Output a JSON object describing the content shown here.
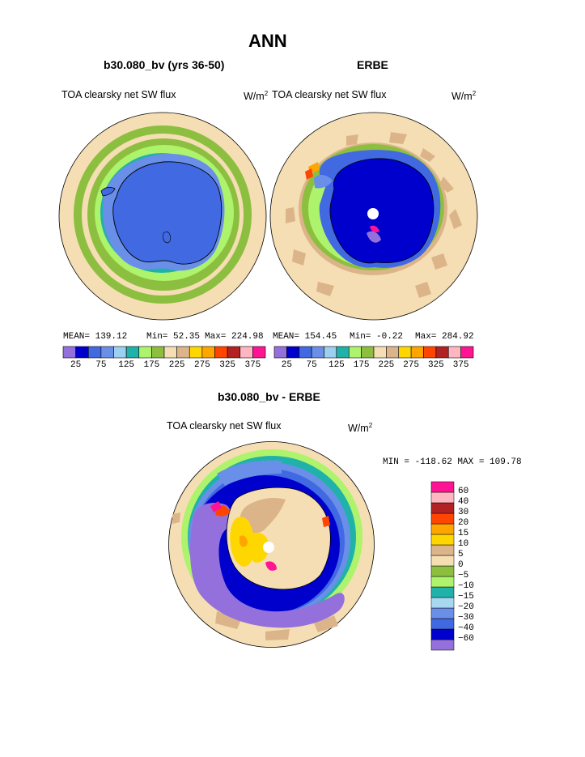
{
  "figure": {
    "title": "ANN",
    "panel_left": {
      "case": "b30.080_bv (yrs 36-50)",
      "field": "TOA clearsky net SW flux",
      "units_base": "W/m",
      "units_exp": "2",
      "mean_label": "MEAN= 139.12",
      "min_label": "Min=  52.35",
      "max_label": "Max= 224.98"
    },
    "panel_right": {
      "case": "ERBE",
      "field": "TOA clearsky net SW flux",
      "units_base": "W/m",
      "units_exp": "2",
      "mean_label": "MEAN= 154.45",
      "min_label": "Min=  -0.22",
      "max_label": "Max= 284.92"
    },
    "panel_diff": {
      "case": "b30.080_bv - ERBE",
      "field": "TOA clearsky net SW flux",
      "units_base": "W/m",
      "units_exp": "2",
      "minmax_label": "MIN = -118.62 MAX = 109.78"
    }
  },
  "colorbar_top": {
    "colors": [
      "#9370db",
      "#0000cd",
      "#4169e1",
      "#6a8fe8",
      "#9ccff0",
      "#20b2aa",
      "#adf36c",
      "#8cbf3f",
      "#f5deb3",
      "#dcb48a",
      "#ffd700",
      "#ffa500",
      "#ff4500",
      "#b22222",
      "#ffb6c1",
      "#ff1493"
    ],
    "tick_labels": [
      "25",
      "75",
      "125",
      "175",
      "225",
      "275",
      "325",
      "375"
    ]
  },
  "colorbar_diff": {
    "colors": [
      "#9370db",
      "#0000cd",
      "#4169e1",
      "#6a8fe8",
      "#a8d8f0",
      "#20b2aa",
      "#adf36c",
      "#8cbf3f",
      "#f5deb3",
      "#dcb48a",
      "#ffd700",
      "#ffa500",
      "#ff4500",
      "#b22222",
      "#ffb6c1",
      "#ff1493"
    ],
    "tick_labels": [
      "60",
      "40",
      "30",
      "20",
      "15",
      "10",
      "5",
      "0",
      "−5",
      "−10",
      "−15",
      "−20",
      "−30",
      "−40",
      "−60"
    ]
  },
  "map_colors": {
    "ocean_far": "#f5deb3",
    "land_blue": "#4169e1",
    "deep_blue": "#0000cd",
    "green_band": "#8cbf3f",
    "lime_band": "#adf36c",
    "teal_band": "#20b2aa",
    "light_blue_band": "#a8d8f0",
    "purple_band": "#9370db",
    "yellow": "#ffd700",
    "tan": "#dcb48a",
    "orange": "#ffa500",
    "red": "#ff4500",
    "pink": "#ff1493",
    "pole": "#ffffff"
  }
}
